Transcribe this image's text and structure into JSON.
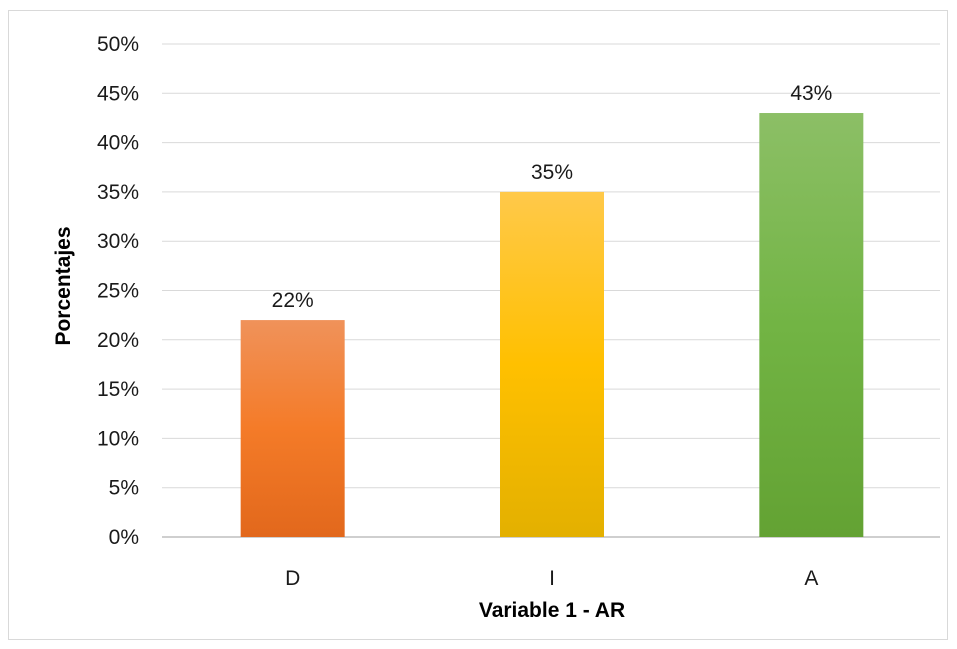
{
  "chart_data": {
    "type": "bar",
    "categories": [
      "D",
      "I",
      "A"
    ],
    "values": [
      22,
      35,
      43
    ],
    "value_labels": [
      "22%",
      "35%",
      "43%"
    ],
    "xlabel": "Variable 1 - AR",
    "ylabel": "Porcentajes",
    "ylim": [
      0,
      50
    ],
    "yticks": [
      0,
      5,
      10,
      15,
      20,
      25,
      30,
      35,
      40,
      45,
      50
    ],
    "ytick_labels": [
      "0%",
      "5%",
      "10%",
      "15%",
      "20%",
      "25%",
      "30%",
      "35%",
      "40%",
      "45%",
      "50%"
    ],
    "grid": true,
    "legend": "none",
    "colors": {
      "D": {
        "top": "#F0925A",
        "mid": "#F47B28",
        "bottom": "#E2681C"
      },
      "I": {
        "top": "#FFC94A",
        "mid": "#FFC000",
        "bottom": "#E3B000"
      },
      "A": {
        "top": "#8CBF66",
        "mid": "#72B444",
        "bottom": "#63A233"
      },
      "gridline": "#d9d9d9",
      "axis": "#bfbfbf"
    }
  }
}
